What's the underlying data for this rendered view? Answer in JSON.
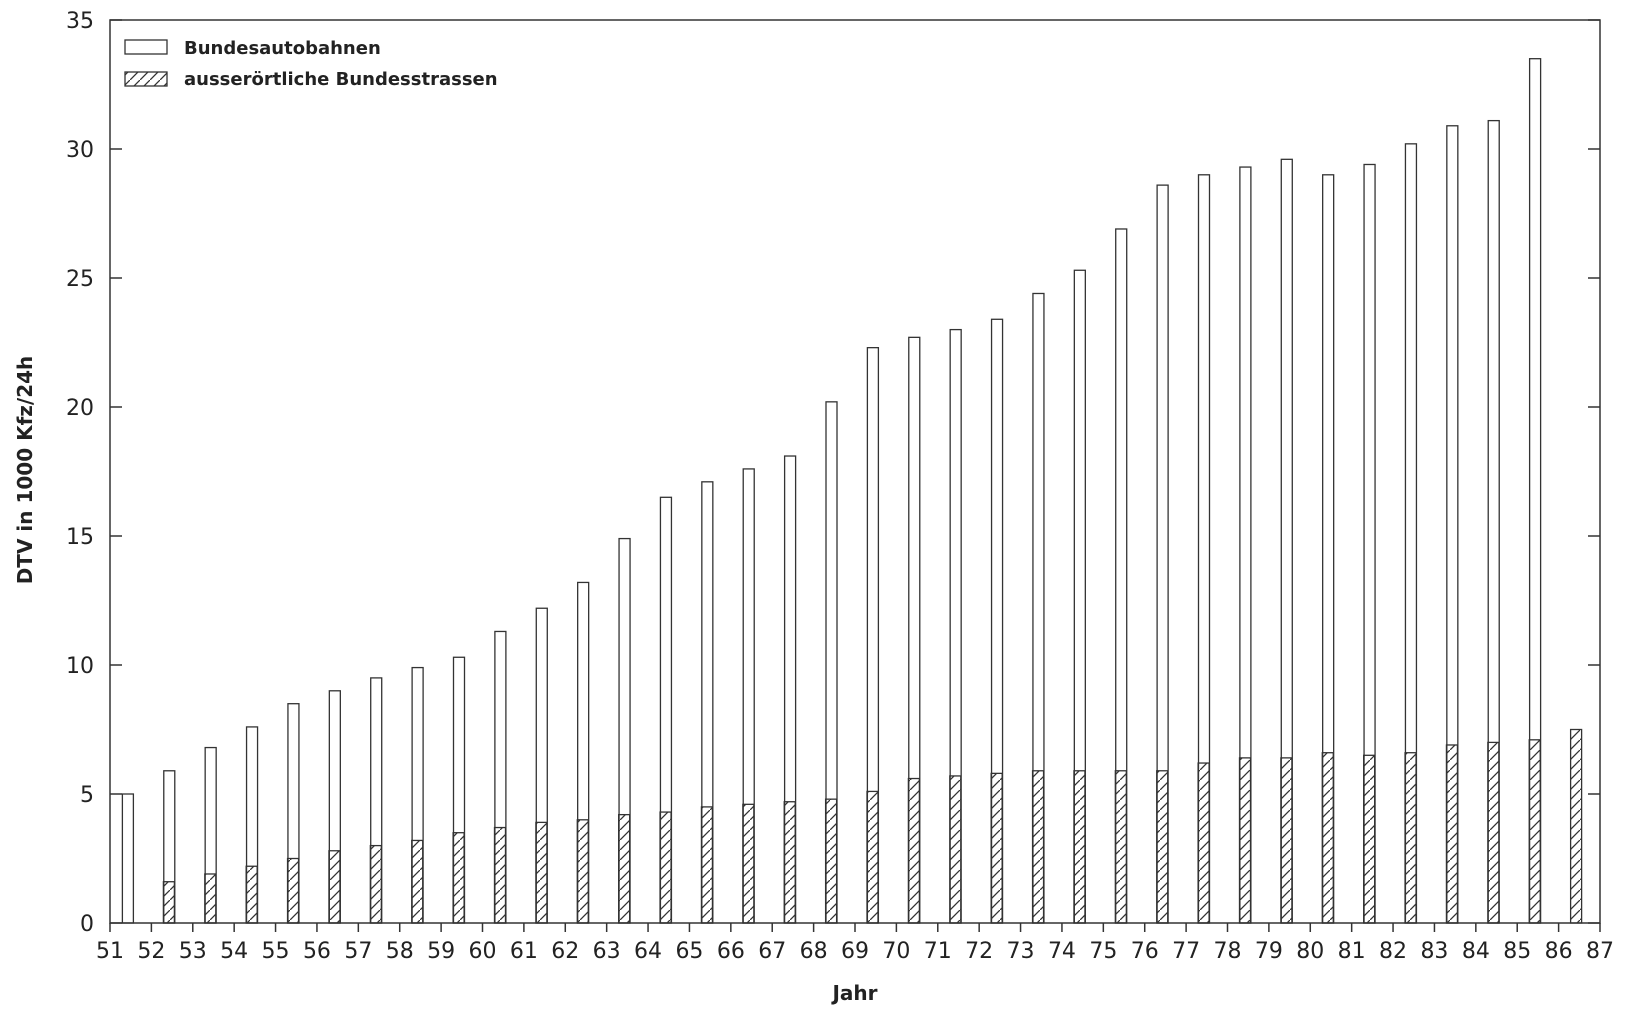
{
  "chart_data": {
    "type": "bar",
    "title": "",
    "xlabel": "Jahr",
    "ylabel": "DTV in 1000 Kfz/24h",
    "xlim": [
      51,
      87
    ],
    "ylim": [
      0,
      35
    ],
    "x_ticks": [
      "51",
      "52",
      "53",
      "54",
      "55",
      "56",
      "57",
      "58",
      "59",
      "60",
      "61",
      "62",
      "63",
      "64",
      "65",
      "66",
      "67",
      "68",
      "69",
      "70",
      "71",
      "72",
      "73",
      "74",
      "75",
      "76",
      "77",
      "78",
      "79",
      "80",
      "81",
      "82",
      "83",
      "84",
      "85",
      "86",
      "87"
    ],
    "y_ticks": [
      0,
      5,
      10,
      15,
      20,
      25,
      30,
      35
    ],
    "categories": [
      "52",
      "53",
      "54",
      "55",
      "56",
      "57",
      "58",
      "59",
      "60",
      "61",
      "62",
      "63",
      "64",
      "65",
      "66",
      "67",
      "68",
      "69",
      "70",
      "71",
      "72",
      "73",
      "74",
      "75",
      "76",
      "77",
      "78",
      "79",
      "80",
      "81",
      "82",
      "83",
      "84",
      "85",
      "86"
    ],
    "series": [
      {
        "name": "Bundesautobahnen",
        "pattern": "empty",
        "values": [
          5.0,
          5.9,
          6.8,
          7.6,
          8.5,
          9.0,
          9.5,
          9.9,
          10.3,
          11.3,
          12.2,
          13.2,
          14.9,
          16.5,
          17.1,
          17.6,
          18.1,
          20.2,
          22.3,
          22.7,
          23.0,
          23.4,
          24.4,
          25.3,
          26.9,
          28.6,
          29.0,
          29.3,
          29.6,
          29.0,
          29.4,
          30.2,
          30.9,
          31.1,
          33.5
        ]
      },
      {
        "name": "ausserörtliche Bundesstrassen",
        "pattern": "hatched",
        "values": [
          1.6,
          1.9,
          2.2,
          2.5,
          2.8,
          3.0,
          3.2,
          3.5,
          3.7,
          3.9,
          4.0,
          4.2,
          4.3,
          4.5,
          4.6,
          4.7,
          4.8,
          5.1,
          5.6,
          5.7,
          5.8,
          5.9,
          5.9,
          5.9,
          5.9,
          6.2,
          6.4,
          6.4,
          6.6,
          6.5,
          6.6,
          6.9,
          7.0,
          7.1,
          7.5
        ]
      }
    ],
    "grid": false,
    "legend_position": "top-left"
  },
  "colors": {
    "line": "#333333",
    "background": "#ffffff"
  }
}
